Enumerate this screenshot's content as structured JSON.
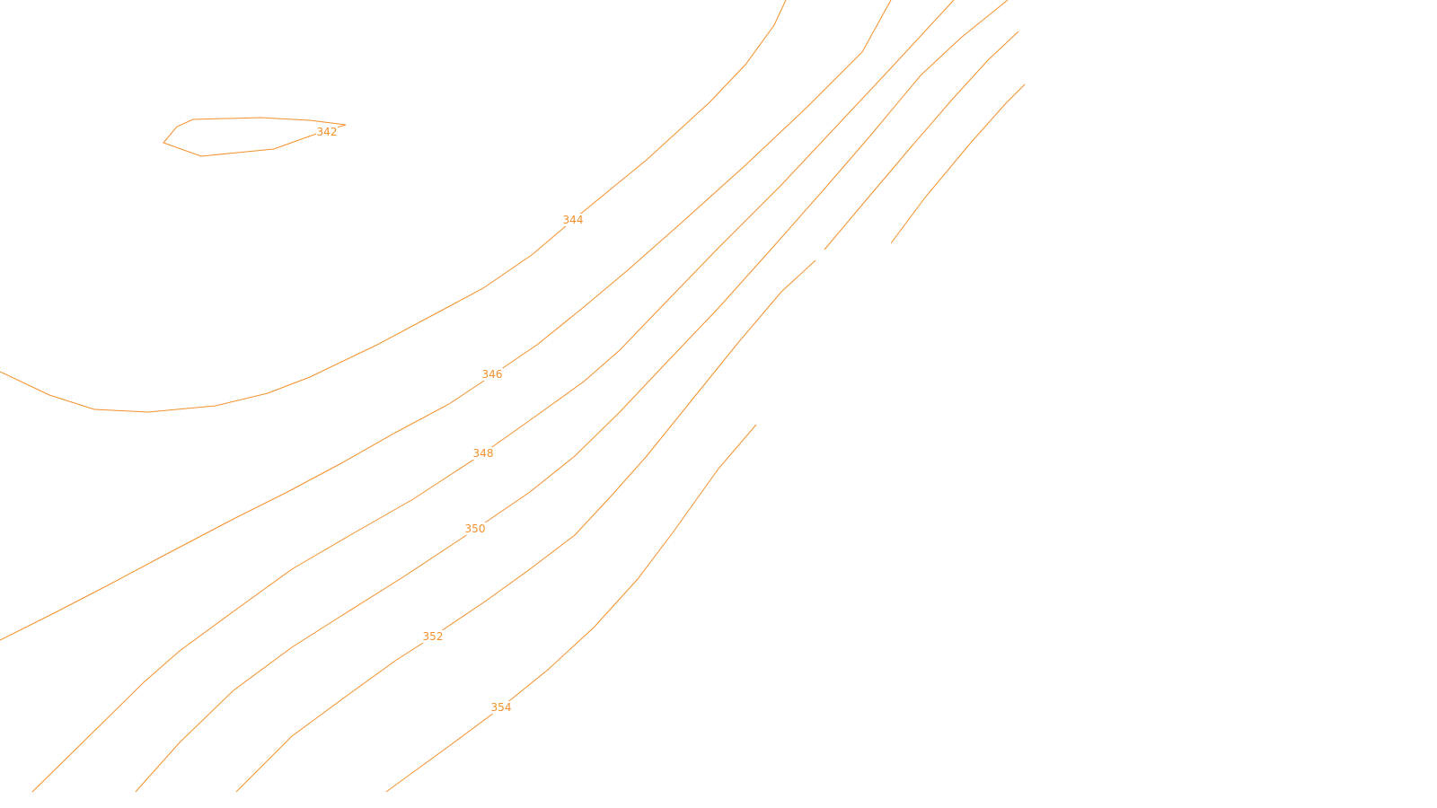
{
  "map": {
    "line_color": "#f5902a",
    "background": "#ffffff",
    "contours": [
      {
        "id": "342",
        "label": "342"
      },
      {
        "id": "344",
        "label": "344"
      },
      {
        "id": "346",
        "label": "346"
      },
      {
        "id": "348",
        "label": "348"
      },
      {
        "id": "350",
        "label": "350"
      },
      {
        "id": "352",
        "label": "352"
      },
      {
        "id": "354",
        "label": "354"
      }
    ]
  }
}
